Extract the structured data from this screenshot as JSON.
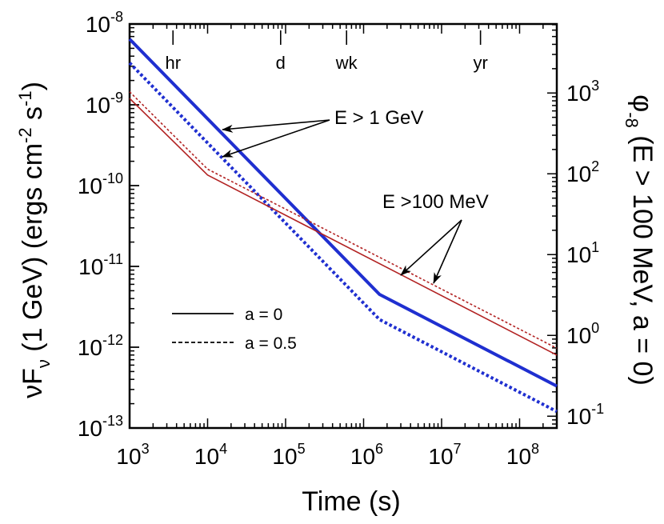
{
  "chart_data": {
    "type": "line",
    "x_scale": "log",
    "y_scale": "log",
    "xlim": [
      1000,
      300000000
    ],
    "ylim": [
      1e-13,
      1e-08
    ],
    "xlabel": "Time (s)",
    "ylabel": {
      "main": "νF",
      "sub": "ν",
      "rest": " (1 GeV) (ergs cm",
      "exp1": "-2",
      "mid": " s",
      "exp2": "-1",
      "end": ")"
    },
    "right_axis": {
      "label": {
        "symbol": "φ",
        "sub": "-8",
        "rest": " (E > 100 MeV, a = 0)"
      },
      "ticks": [
        {
          "base": "10",
          "exp": "-1",
          "y_value": 1.4e-13
        },
        {
          "base": "10",
          "exp": "0",
          "y_value": 1.4e-12
        },
        {
          "base": "10",
          "exp": "1",
          "y_value": 1.4e-11
        },
        {
          "base": "10",
          "exp": "2",
          "y_value": 1.4e-10
        },
        {
          "base": "10",
          "exp": "3",
          "y_value": 1.4e-09
        }
      ]
    },
    "x_ticks": [
      {
        "base": "10",
        "exp": "3",
        "value": 1000
      },
      {
        "base": "10",
        "exp": "4",
        "value": 10000
      },
      {
        "base": "10",
        "exp": "5",
        "value": 100000
      },
      {
        "base": "10",
        "exp": "6",
        "value": 1000000
      },
      {
        "base": "10",
        "exp": "7",
        "value": 10000000
      },
      {
        "base": "10",
        "exp": "8",
        "value": 100000000
      }
    ],
    "y_ticks": [
      {
        "base": "10",
        "exp": "-13",
        "value": 1e-13
      },
      {
        "base": "10",
        "exp": "-12",
        "value": 1e-12
      },
      {
        "base": "10",
        "exp": "-11",
        "value": 1e-11
      },
      {
        "base": "10",
        "exp": "-10",
        "value": 1e-10
      },
      {
        "base": "10",
        "exp": "-9",
        "value": 1e-09
      },
      {
        "base": "10",
        "exp": "-8",
        "value": 1e-08
      }
    ],
    "time_markers": [
      {
        "label": "hr",
        "value": 3600
      },
      {
        "label": "d",
        "value": 86400
      },
      {
        "label": "wk",
        "value": 604800
      },
      {
        "label": "yr",
        "value": 31536000
      }
    ],
    "series": [
      {
        "name": "E > 1 GeV, a = 0",
        "color": "#1f2fd0",
        "style": "solid",
        "width": "thick",
        "points": [
          [
            1000,
            6.5e-09
          ],
          [
            1600000,
            4.5e-12
          ],
          [
            300000000,
            3.3e-13
          ]
        ]
      },
      {
        "name": "E > 1 GeV, a = 0.5",
        "color": "#1f2fd0",
        "style": "dotted",
        "width": "thick",
        "points": [
          [
            1000,
            3.3e-09
          ],
          [
            1600000,
            2.2e-12
          ],
          [
            300000000,
            1.6e-13
          ]
        ]
      },
      {
        "name": "E > 100 MeV, a = 0",
        "color": "#b22222",
        "style": "solid",
        "width": "thin",
        "points": [
          [
            1000,
            1.2e-09
          ],
          [
            10000,
            1.35e-10
          ],
          [
            300000000,
            8e-13
          ]
        ]
      },
      {
        "name": "E > 100 MeV, a = 0.5",
        "color": "#b22222",
        "style": "dotted",
        "width": "thin",
        "points": [
          [
            1000,
            1.45e-09
          ],
          [
            10000,
            1.6e-10
          ],
          [
            300000000,
            9.7e-13
          ]
        ]
      }
    ],
    "annotations": [
      {
        "text": "E > 1 GeV",
        "arrow_targets": [
          [
            15000,
            4.5e-10
          ],
          [
            15000,
            1.6e-10
          ]
        ]
      },
      {
        "text": "E >100 MeV",
        "arrow_targets": [
          [
            3000000,
            6.8e-12
          ],
          [
            7000000,
            6e-12
          ]
        ]
      }
    ],
    "legend": {
      "placement": "lower-left",
      "entries": [
        {
          "label": "a = 0",
          "style": "solid"
        },
        {
          "label": "a = 0.5",
          "style": "dashed"
        }
      ]
    }
  }
}
